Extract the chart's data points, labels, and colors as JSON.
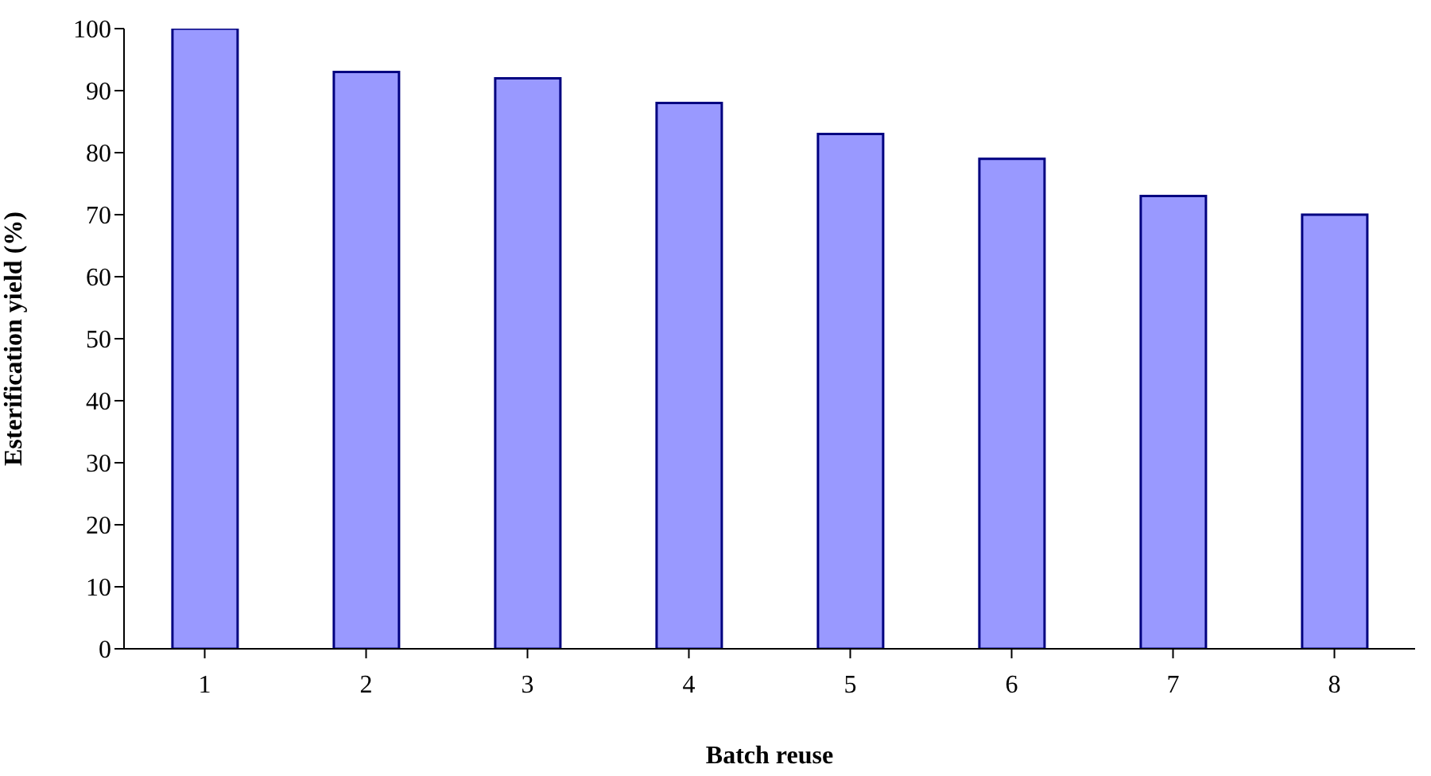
{
  "chart_data": {
    "type": "bar",
    "xlabel": "Batch reuse",
    "ylabel": "Esterification yield (%)",
    "categories": [
      "1",
      "2",
      "3",
      "4",
      "5",
      "6",
      "7",
      "8"
    ],
    "values": [
      100,
      93,
      92,
      88,
      83,
      79,
      73,
      70
    ],
    "color": "#9999ff",
    "ylim": [
      0,
      100
    ],
    "yticks": [
      0,
      10,
      20,
      30,
      40,
      50,
      60,
      70,
      80,
      90,
      100
    ],
    "grid": false,
    "legend": false
  }
}
